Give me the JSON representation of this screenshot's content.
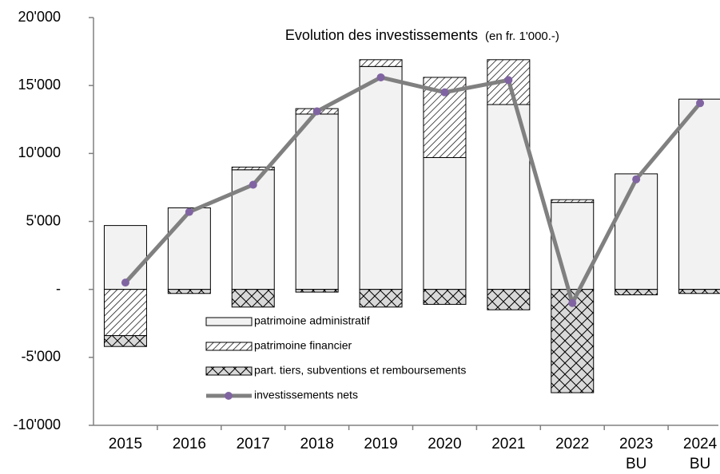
{
  "chart_data": {
    "type": "bar",
    "title": "Evolution des investissements",
    "subtitle": "(en fr. 1'000.-)",
    "categories": [
      "2015",
      "2016",
      "2017",
      "2018",
      "2019",
      "2020",
      "2021",
      "2022",
      "2023\nBU",
      "2024\nBU"
    ],
    "series": [
      {
        "name": "patrimoine administratif",
        "type": "bar",
        "color": "#f2f2f2",
        "values": [
          4700,
          6000,
          8800,
          12900,
          16400,
          9700,
          13600,
          6400,
          8500,
          14000
        ]
      },
      {
        "name": "patrimoine financier",
        "type": "bar",
        "color": "#ffffff",
        "pattern": "diagonal",
        "values": [
          -3400,
          0,
          200,
          400,
          500,
          5900,
          3300,
          200,
          0,
          0
        ]
      },
      {
        "name": "part. tiers, subventions et remboursements",
        "type": "bar",
        "color": "#d9d9d9",
        "pattern": "crosshatch",
        "values": [
          -800,
          -300,
          -1300,
          -200,
          -1300,
          -1100,
          -1500,
          -7600,
          -400,
          -300
        ]
      },
      {
        "name": "investissements nets",
        "type": "line",
        "color": "#808080",
        "marker_color": "#8064a2",
        "values": [
          500,
          5700,
          7700,
          13100,
          15600,
          14500,
          15400,
          -1000,
          8100,
          13700
        ]
      }
    ],
    "ylim": [
      -10000,
      20000
    ],
    "yticks": [
      {
        "value": -10000,
        "label": "-10'000"
      },
      {
        "value": -5000,
        "label": "-5'000"
      },
      {
        "value": 0,
        "label": "-"
      },
      {
        "value": 5000,
        "label": "5'000"
      },
      {
        "value": 10000,
        "label": "10'000"
      },
      {
        "value": 15000,
        "label": "15'000"
      },
      {
        "value": 20000,
        "label": "20'000"
      }
    ],
    "grid": false
  }
}
